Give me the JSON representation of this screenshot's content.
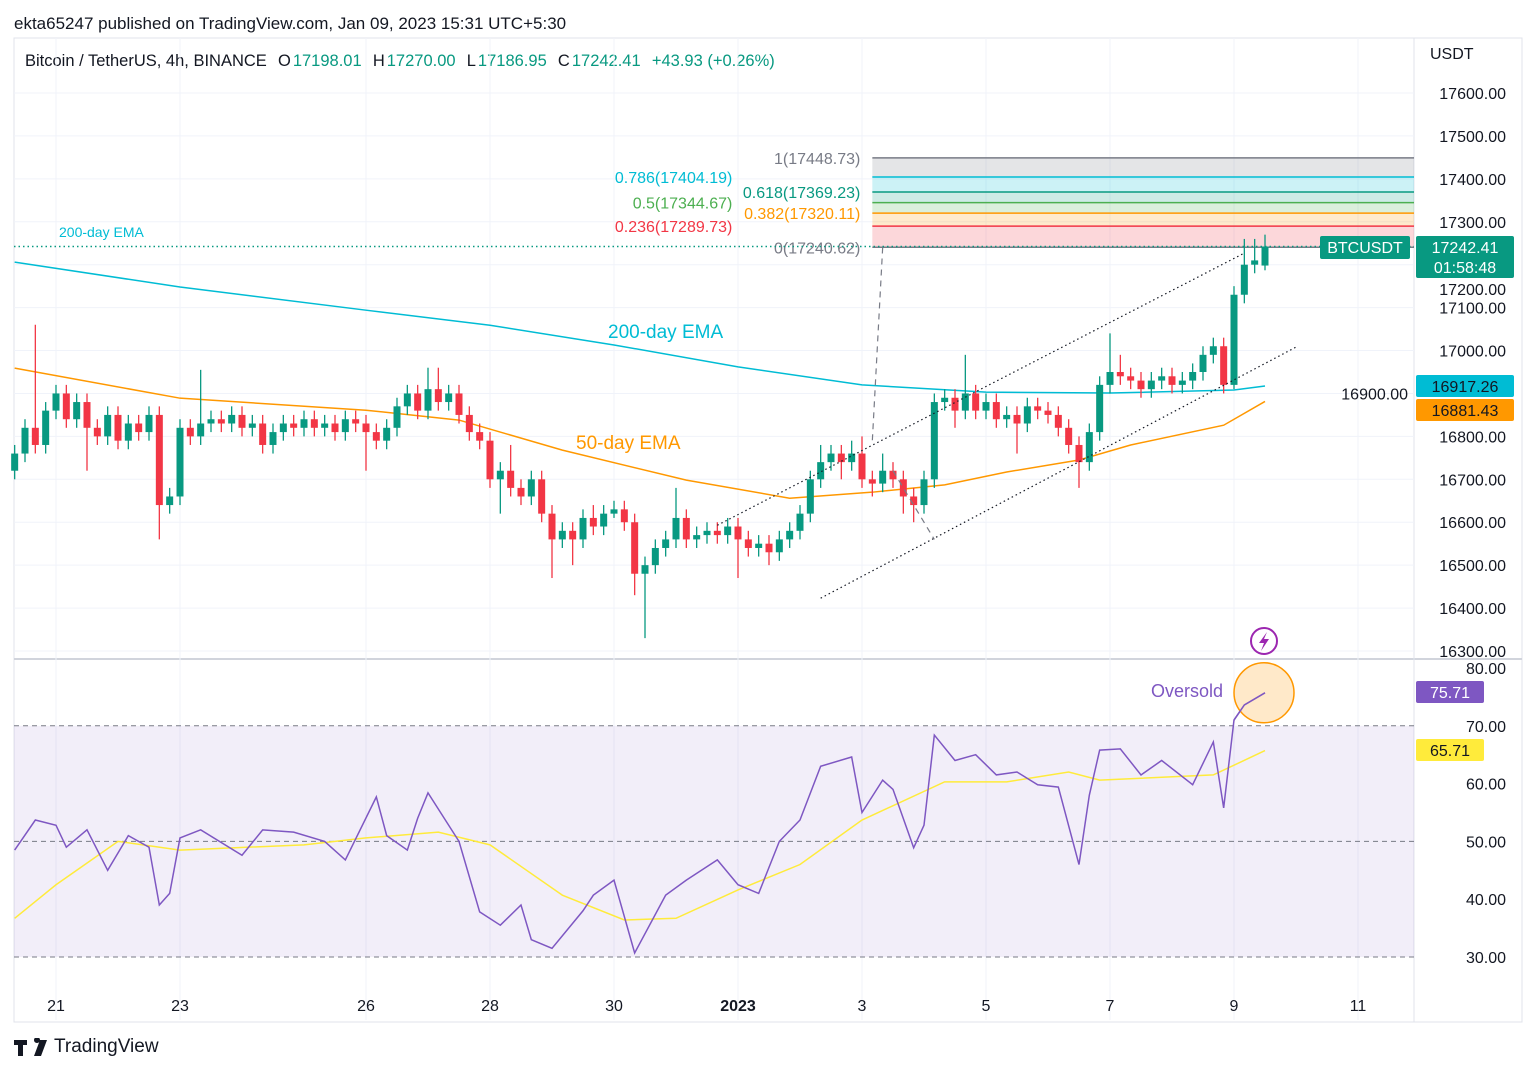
{
  "header": {
    "published": "ekta65247 published on TradingView.com, Jan 09, 2023 15:31 UTC+5:30"
  },
  "legend": {
    "symbol": "Bitcoin / TetherUS, 4h, BINANCE",
    "o_label": "O",
    "o": "17198.01",
    "h_label": "H",
    "h": "17270.00",
    "l_label": "L",
    "l": "17186.95",
    "c_label": "C",
    "c": "17242.41",
    "change": "+43.93 (+0.26%)"
  },
  "price_axis": {
    "unit": "USDT",
    "ticks": [
      "17600.00",
      "17500.00",
      "17400.00",
      "17300.00",
      "17200.00",
      "17100.00",
      "17000.00",
      "16900.00",
      "16800.00",
      "16700.00",
      "16600.00",
      "16500.00",
      "16400.00",
      "16300.00"
    ]
  },
  "rsi_axis": {
    "ticks": [
      "80.00",
      "70.00",
      "60.00",
      "50.00",
      "40.00",
      "30.00"
    ]
  },
  "time_axis": {
    "ticks": [
      {
        "t": "12-21 00",
        "label": "21"
      },
      {
        "t": "12-23 00",
        "label": "23"
      },
      {
        "t": "12-26 00",
        "label": "26"
      },
      {
        "t": "12-28 00",
        "label": "28"
      },
      {
        "t": "12-30 00",
        "label": "30"
      },
      {
        "t": "01-01 00",
        "label": "2023",
        "bold": true
      },
      {
        "t": "01-03 00",
        "label": "3"
      },
      {
        "t": "01-05 00",
        "label": "5"
      },
      {
        "t": "01-07 00",
        "label": "7"
      },
      {
        "t": "01-09 00",
        "label": "9"
      },
      {
        "t": "01-11 00",
        "label": "11"
      }
    ]
  },
  "badges": {
    "symbol": "BTCUSDT",
    "last_price": "17242.41",
    "countdown": "01:58:48",
    "ema200": "16917.26",
    "ema50": "16881.43",
    "rsi": "75.71",
    "rsi_ma": "65.71"
  },
  "colors": {
    "up": "#089981",
    "down": "#f23645",
    "ema200": "#00bcd4",
    "ema50": "#ff9800",
    "rsi": "#7e57c2",
    "rsi_ma": "#ffeb3b"
  },
  "annotations": {
    "ema200_small": "200-day EMA",
    "ema200": "200-day EMA",
    "ema50": "50-day EMA",
    "oversold": "Oversold"
  },
  "footer": {
    "brand": "TradingView"
  },
  "chart_data": {
    "type": "candlestick",
    "interval": "4h",
    "start": "12-20 08",
    "price_range": [
      16300,
      17600
    ],
    "candles": [
      [
        16720,
        16780,
        16700,
        16760
      ],
      [
        16760,
        16840,
        16740,
        16820
      ],
      [
        16820,
        17060,
        16760,
        16780
      ],
      [
        16780,
        16880,
        16760,
        16860
      ],
      [
        16860,
        16920,
        16840,
        16900
      ],
      [
        16900,
        16920,
        16820,
        16840
      ],
      [
        16840,
        16900,
        16820,
        16880
      ],
      [
        16880,
        16900,
        16720,
        16820
      ],
      [
        16820,
        16840,
        16780,
        16800
      ],
      [
        16800,
        16870,
        16780,
        16850
      ],
      [
        16850,
        16870,
        16770,
        16790
      ],
      [
        16790,
        16850,
        16770,
        16830
      ],
      [
        16830,
        16850,
        16790,
        16810
      ],
      [
        16810,
        16870,
        16790,
        16850
      ],
      [
        16850,
        16870,
        16560,
        16640
      ],
      [
        16640,
        16680,
        16620,
        16660
      ],
      [
        16660,
        16840,
        16640,
        16820
      ],
      [
        16820,
        16840,
        16780,
        16800
      ],
      [
        16800,
        16955,
        16780,
        16830
      ],
      [
        16830,
        16860,
        16810,
        16840
      ],
      [
        16840,
        16860,
        16810,
        16830
      ],
      [
        16830,
        16870,
        16810,
        16850
      ],
      [
        16850,
        16870,
        16800,
        16820
      ],
      [
        16820,
        16850,
        16800,
        16830
      ],
      [
        16830,
        16850,
        16760,
        16780
      ],
      [
        16780,
        16830,
        16760,
        16810
      ],
      [
        16810,
        16850,
        16790,
        16830
      ],
      [
        16830,
        16850,
        16800,
        16820
      ],
      [
        16820,
        16860,
        16800,
        16840
      ],
      [
        16840,
        16860,
        16800,
        16820
      ],
      [
        16820,
        16850,
        16800,
        16830
      ],
      [
        16830,
        16850,
        16790,
        16810
      ],
      [
        16810,
        16860,
        16790,
        16840
      ],
      [
        16840,
        16860,
        16810,
        16830
      ],
      [
        16830,
        16850,
        16720,
        16810
      ],
      [
        16810,
        16830,
        16770,
        16790
      ],
      [
        16790,
        16840,
        16770,
        16820
      ],
      [
        16820,
        16890,
        16800,
        16870
      ],
      [
        16870,
        16920,
        16850,
        16900
      ],
      [
        16900,
        16920,
        16840,
        16860
      ],
      [
        16860,
        16960,
        16840,
        16910
      ],
      [
        16910,
        16960,
        16860,
        16880
      ],
      [
        16880,
        16920,
        16860,
        16900
      ],
      [
        16900,
        16920,
        16830,
        16850
      ],
      [
        16850,
        16870,
        16790,
        16810
      ],
      [
        16810,
        16830,
        16770,
        16790
      ],
      [
        16790,
        16810,
        16680,
        16700
      ],
      [
        16700,
        16740,
        16620,
        16720
      ],
      [
        16720,
        16780,
        16660,
        16680
      ],
      [
        16680,
        16700,
        16640,
        16660
      ],
      [
        16660,
        16720,
        16640,
        16700
      ],
      [
        16700,
        16720,
        16600,
        16620
      ],
      [
        16620,
        16640,
        16470,
        16560
      ],
      [
        16560,
        16600,
        16540,
        16580
      ],
      [
        16580,
        16600,
        16500,
        16560
      ],
      [
        16560,
        16630,
        16540,
        16610
      ],
      [
        16610,
        16640,
        16570,
        16590
      ],
      [
        16590,
        16640,
        16570,
        16620
      ],
      [
        16620,
        16650,
        16610,
        16630
      ],
      [
        16630,
        16650,
        16580,
        16600
      ],
      [
        16600,
        16620,
        16430,
        16480
      ],
      [
        16480,
        16520,
        16330,
        16500
      ],
      [
        16500,
        16560,
        16480,
        16540
      ],
      [
        16540,
        16580,
        16520,
        16560
      ],
      [
        16560,
        16680,
        16540,
        16610
      ],
      [
        16610,
        16630,
        16540,
        16560
      ],
      [
        16560,
        16590,
        16540,
        16570
      ],
      [
        16570,
        16600,
        16550,
        16580
      ],
      [
        16580,
        16600,
        16550,
        16570
      ],
      [
        16570,
        16610,
        16550,
        16590
      ],
      [
        16590,
        16610,
        16470,
        16560
      ],
      [
        16560,
        16580,
        16520,
        16540
      ],
      [
        16540,
        16570,
        16520,
        16550
      ],
      [
        16550,
        16570,
        16500,
        16530
      ],
      [
        16530,
        16580,
        16510,
        16560
      ],
      [
        16560,
        16600,
        16540,
        16580
      ],
      [
        16580,
        16640,
        16560,
        16620
      ],
      [
        16620,
        16720,
        16600,
        16700
      ],
      [
        16700,
        16780,
        16680,
        16740
      ],
      [
        16740,
        16780,
        16720,
        16760
      ],
      [
        16760,
        16780,
        16700,
        16740
      ],
      [
        16740,
        16790,
        16720,
        16760
      ],
      [
        16760,
        16800,
        16680,
        16700
      ],
      [
        16700,
        16720,
        16660,
        16690
      ],
      [
        16690,
        16760,
        16670,
        16720
      ],
      [
        16720,
        16740,
        16680,
        16700
      ],
      [
        16700,
        16720,
        16620,
        16660
      ],
      [
        16660,
        16680,
        16600,
        16640
      ],
      [
        16640,
        16720,
        16620,
        16700
      ],
      [
        16700,
        16900,
        16680,
        16880
      ],
      [
        16880,
        16910,
        16860,
        16890
      ],
      [
        16890,
        16910,
        16820,
        16860
      ],
      [
        16860,
        16990,
        16840,
        16900
      ],
      [
        16900,
        16920,
        16840,
        16860
      ],
      [
        16860,
        16900,
        16840,
        16880
      ],
      [
        16880,
        16900,
        16820,
        16840
      ],
      [
        16840,
        16870,
        16820,
        16850
      ],
      [
        16850,
        16870,
        16760,
        16830
      ],
      [
        16830,
        16890,
        16810,
        16870
      ],
      [
        16870,
        16890,
        16840,
        16860
      ],
      [
        16860,
        16880,
        16830,
        16850
      ],
      [
        16850,
        16870,
        16800,
        16820
      ],
      [
        16820,
        16840,
        16760,
        16780
      ],
      [
        16780,
        16800,
        16680,
        16740
      ],
      [
        16740,
        16830,
        16720,
        16810
      ],
      [
        16810,
        16940,
        16790,
        16920
      ],
      [
        16920,
        17040,
        16900,
        16950
      ],
      [
        16950,
        16990,
        16920,
        16940
      ],
      [
        16940,
        16960,
        16910,
        16930
      ],
      [
        16930,
        16950,
        16890,
        16910
      ],
      [
        16910,
        16950,
        16890,
        16930
      ],
      [
        16930,
        16960,
        16910,
        16940
      ],
      [
        16940,
        16960,
        16900,
        16920
      ],
      [
        16920,
        16950,
        16900,
        16930
      ],
      [
        16930,
        16970,
        16910,
        16950
      ],
      [
        16950,
        17010,
        16930,
        16990
      ],
      [
        16990,
        17030,
        16970,
        17010
      ],
      [
        17010,
        17030,
        16900,
        16920
      ],
      [
        16920,
        17150,
        16910,
        17130
      ],
      [
        17130,
        17260,
        17110,
        17200
      ],
      [
        17200,
        17260,
        17180,
        17210
      ],
      [
        17198.01,
        17270.0,
        17186.95,
        17242.41
      ]
    ],
    "ema200": [
      [
        "12-20 08",
        17206
      ],
      [
        "12-23 00",
        17148
      ],
      [
        "12-26 00",
        17094
      ],
      [
        "12-28 00",
        17059
      ],
      [
        "12-30 00",
        17013
      ],
      [
        "01-01 00",
        16962
      ],
      [
        "01-03 00",
        16920
      ],
      [
        "01-05 00",
        16903
      ],
      [
        "01-07 00",
        16901
      ],
      [
        "01-09 00",
        16908
      ],
      [
        "01-09 12",
        16917.26
      ]
    ],
    "ema50": [
      [
        "12-20 08",
        16959
      ],
      [
        "12-23 00",
        16889
      ],
      [
        "12-26 00",
        16861
      ],
      [
        "12-27 12",
        16838
      ],
      [
        "12-29 04",
        16768
      ],
      [
        "12-31 04",
        16698
      ],
      [
        "01-01 20",
        16656
      ],
      [
        "01-03 04",
        16670
      ],
      [
        "01-04 08",
        16687
      ],
      [
        "01-05 08",
        16717
      ],
      [
        "01-06 12",
        16745
      ],
      [
        "01-07 08",
        16780
      ],
      [
        "01-08 20",
        16826
      ],
      [
        "01-09 12",
        16881.43
      ]
    ],
    "fibonacci": {
      "from": "01-03 04",
      "levels": [
        {
          "level": "1",
          "price": 17448.73,
          "label": "17448.73",
          "color": "#787b86"
        },
        {
          "level": "0.786",
          "price": 17404.19,
          "label": "17404.19",
          "color": "#00bcd4"
        },
        {
          "level": "0.618",
          "price": 17369.23,
          "label": "17369.23",
          "color": "#089981"
        },
        {
          "level": "0.5",
          "price": 17344.67,
          "label": "17344.67",
          "color": "#4caf50"
        },
        {
          "level": "0.382",
          "price": 17320.11,
          "label": "17320.11",
          "color": "#ff9800"
        },
        {
          "level": "0.236",
          "price": 17289.73,
          "label": "17289.73",
          "color": "#f23645"
        },
        {
          "level": "0",
          "price": 17240.62,
          "label": "17240.62",
          "color": "#787b86"
        }
      ]
    },
    "trendlines": [
      {
        "style": "dotted",
        "points": [
          [
            "12-31 16",
            16593
          ],
          [
            "01-09 04",
            17227
          ]
        ]
      },
      {
        "style": "dotted",
        "points": [
          [
            "01-02 08",
            16423
          ],
          [
            "01-10 00",
            17008
          ]
        ]
      },
      {
        "style": "dashed",
        "points": [
          [
            "01-03 08",
            17240
          ],
          [
            "01-03 04",
            16790
          ]
        ]
      },
      {
        "style": "dashed",
        "points": [
          [
            "01-03 12",
            16720
          ],
          [
            "01-04 04",
            16560
          ]
        ]
      }
    ],
    "rsi": {
      "range": [
        30,
        80
      ],
      "bands": [
        70,
        50,
        30
      ],
      "values": [
        [
          "12-20 08",
          48.5
        ],
        [
          "12-20 16",
          53.7
        ],
        [
          "12-21 00",
          52.8
        ],
        [
          "12-21 04",
          49
        ],
        [
          "12-21 12",
          52
        ],
        [
          "12-21 20",
          45
        ],
        [
          "12-22 04",
          51
        ],
        [
          "12-22 12",
          49
        ],
        [
          "12-22 16",
          39
        ],
        [
          "12-22 20",
          41
        ],
        [
          "12-23 00",
          50.6
        ],
        [
          "12-23 08",
          52
        ],
        [
          "12-24 00",
          47.6
        ],
        [
          "12-24 08",
          52
        ],
        [
          "12-24 20",
          51.6
        ],
        [
          "12-25 08",
          50
        ],
        [
          "12-25 16",
          46.8
        ],
        [
          "12-26 04",
          57.7
        ],
        [
          "12-26 08",
          51
        ],
        [
          "12-26 16",
          48.5
        ],
        [
          "12-26 20",
          54
        ],
        [
          "12-27 00",
          58.4
        ],
        [
          "12-27 12",
          50
        ],
        [
          "12-27 20",
          37.8
        ],
        [
          "12-28 04",
          35.5
        ],
        [
          "12-28 12",
          39
        ],
        [
          "12-28 16",
          33
        ],
        [
          "12-29 00",
          31.5
        ],
        [
          "12-29 12",
          38
        ],
        [
          "12-29 16",
          40.7
        ],
        [
          "12-30 00",
          43.3
        ],
        [
          "12-30 08",
          30.7
        ],
        [
          "12-30 20",
          40.7
        ],
        [
          "12-31 04",
          43.3
        ],
        [
          "12-31 16",
          46.8
        ],
        [
          "01-01 00",
          42.5
        ],
        [
          "01-01 08",
          41
        ],
        [
          "01-01 16",
          50
        ],
        [
          "01-02 00",
          53.7
        ],
        [
          "01-02 08",
          63
        ],
        [
          "01-02 20",
          64.6
        ],
        [
          "01-03 00",
          55
        ],
        [
          "01-03 08",
          60.6
        ],
        [
          "01-03 12",
          59
        ],
        [
          "01-03 20",
          48.9
        ],
        [
          "01-04 00",
          52.8
        ],
        [
          "01-04 04",
          68.4
        ],
        [
          "01-04 12",
          64
        ],
        [
          "01-04 20",
          65
        ],
        [
          "01-05 04",
          61.5
        ],
        [
          "01-05 12",
          62
        ],
        [
          "01-05 20",
          59.8
        ],
        [
          "01-06 04",
          59.4
        ],
        [
          "01-06 12",
          46
        ],
        [
          "01-06 16",
          58
        ],
        [
          "01-06 20",
          65.8
        ],
        [
          "01-07 04",
          66
        ],
        [
          "01-07 12",
          61.5
        ],
        [
          "01-07 20",
          64
        ],
        [
          "01-08 08",
          59.8
        ],
        [
          "01-08 16",
          67.2
        ],
        [
          "01-08 20",
          55.8
        ],
        [
          "01-09 00",
          71
        ],
        [
          "01-09 04",
          73.6
        ],
        [
          "01-09 12",
          75.71
        ]
      ],
      "ma": [
        [
          "12-20 08",
          36.7
        ],
        [
          "12-21 00",
          42.5
        ],
        [
          "12-22 00",
          50
        ],
        [
          "12-23 00",
          48.5
        ],
        [
          "12-25 00",
          49.4
        ],
        [
          "12-26 00",
          50.6
        ],
        [
          "12-27 04",
          51.6
        ],
        [
          "12-28 00",
          49.4
        ],
        [
          "12-29 04",
          40.7
        ],
        [
          "12-30 04",
          36.4
        ],
        [
          "12-31 00",
          36.7
        ],
        [
          "01-01 00",
          41.6
        ],
        [
          "01-02 00",
          46
        ],
        [
          "01-03 00",
          53.7
        ],
        [
          "01-04 08",
          60.3
        ],
        [
          "01-05 08",
          60.3
        ],
        [
          "01-06 08",
          62
        ],
        [
          "01-06 20",
          60.6
        ],
        [
          "01-08 16",
          61.5
        ],
        [
          "01-09 12",
          65.71
        ]
      ]
    }
  }
}
